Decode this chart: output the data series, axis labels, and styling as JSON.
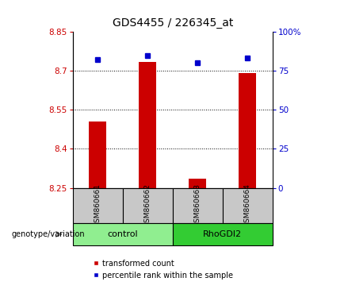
{
  "title": "GDS4455 / 226345_at",
  "samples": [
    "GSM860661",
    "GSM860662",
    "GSM860663",
    "GSM860664"
  ],
  "red_values": [
    8.505,
    8.735,
    8.285,
    8.69
  ],
  "blue_values": [
    82,
    85,
    80,
    83
  ],
  "ymin": 8.25,
  "ymax": 8.85,
  "yticks": [
    8.25,
    8.4,
    8.55,
    8.7,
    8.85
  ],
  "right_yticks": [
    0,
    25,
    50,
    75,
    100
  ],
  "right_yticklabels": [
    "0",
    "25",
    "50",
    "75",
    "100%"
  ],
  "groups": [
    {
      "label": "control",
      "color": "#90EE90"
    },
    {
      "label": "RhoGDI2",
      "color": "#33CC33"
    }
  ],
  "bar_color": "#CC0000",
  "dot_color": "#0000CC",
  "bar_width": 0.35,
  "sample_box_color": "#C8C8C8",
  "legend_red_label": "transformed count",
  "legend_blue_label": "percentile rank within the sample",
  "genotype_label": "genotype/variation",
  "title_fontsize": 10,
  "tick_fontsize": 7.5,
  "sample_fontsize": 6.5,
  "group_fontsize": 8,
  "legend_fontsize": 7
}
